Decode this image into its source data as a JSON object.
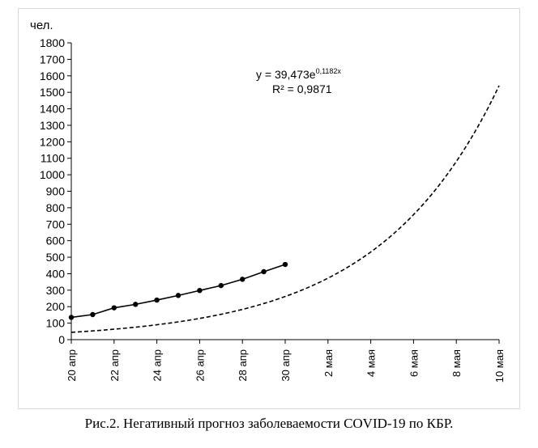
{
  "figure": {
    "caption": "Рис.2. Негативный прогноз заболеваемости COVID-19 по КБР."
  },
  "chart_data": {
    "type": "line",
    "ylabel": "чел.",
    "ylim": [
      0,
      1800
    ],
    "yticks": [
      0,
      100,
      200,
      300,
      400,
      500,
      600,
      700,
      800,
      900,
      1000,
      1100,
      1200,
      1300,
      1400,
      1500,
      1600,
      1700,
      1800
    ],
    "x_categories": [
      "20 апр",
      "21 апр",
      "22 апр",
      "23 апр",
      "24 апр",
      "25 апр",
      "26 апр",
      "27 апр",
      "28 апр",
      "29 апр",
      "30 апр",
      "1 мая",
      "2 мая",
      "3 мая",
      "4 мая",
      "5 мая",
      "6 мая",
      "7 мая",
      "8 мая",
      "9 мая",
      "10 мая"
    ],
    "x_tick_labels": [
      "20 апр",
      "22 апр",
      "24 апр",
      "26 апр",
      "28 апр",
      "30 апр",
      "2 мая",
      "4 мая",
      "6 мая",
      "8 мая",
      "10 мая"
    ],
    "series": [
      {
        "style": "solid-with-markers",
        "color": "#000000",
        "x": [
          "20 апр",
          "21 апр",
          "22 апр",
          "23 апр",
          "24 апр",
          "25 апр",
          "26 апр",
          "27 апр",
          "28 апр",
          "29 апр",
          "30 апр"
        ],
        "values": [
          135,
          152,
          193,
          214,
          240,
          268,
          298,
          328,
          366,
          412,
          456
        ]
      }
    ],
    "trendline": {
      "type": "exponential",
      "a": 39.473,
      "b": 0.1182,
      "x_start": 1,
      "x_end": 31,
      "color": "#000000",
      "style": "dashed",
      "equation_base": "y = 39,473e",
      "equation_exponent": "0,1182x",
      "r2_label": "R² = 0,9871"
    },
    "grid": false,
    "legend": "none"
  }
}
